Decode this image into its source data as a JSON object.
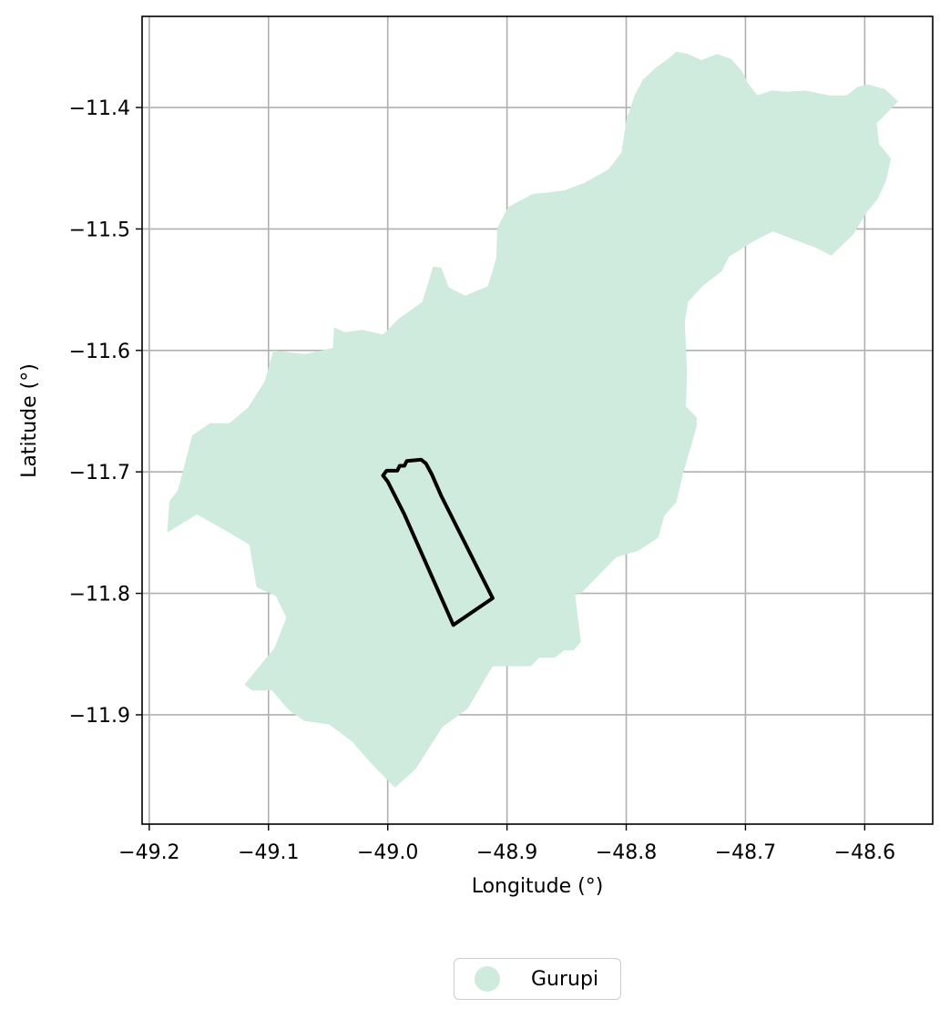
{
  "chart_data": {
    "type": "map",
    "xlabel": "Longitude (°)",
    "ylabel": "Latitude (°)",
    "xlim": [
      -49.206,
      -48.543
    ],
    "ylim": [
      -11.99,
      -11.325
    ],
    "xticks": [
      -49.2,
      -49.1,
      -49.0,
      -48.9,
      -48.8,
      -48.7,
      -48.6
    ],
    "xtick_labels": [
      "−49.2",
      "−49.1",
      "−49.0",
      "−48.9",
      "−48.8",
      "−48.7",
      "−48.6"
    ],
    "yticks": [
      -11.4,
      -11.5,
      -11.6,
      -11.7,
      -11.8,
      -11.9
    ],
    "ytick_labels": [
      "−11.4",
      "−11.5",
      "−11.6",
      "−11.7",
      "−11.8",
      "−11.9"
    ],
    "grid": true,
    "legend_position": "bottom-center",
    "layers": [
      {
        "name": "Gurupi",
        "kind": "region",
        "fill": "#cfebde",
        "boundary": [
          [
            -48.572,
            -11.395
          ],
          [
            -48.583,
            -11.385
          ],
          [
            -48.597,
            -11.381
          ],
          [
            -48.606,
            -11.383
          ],
          [
            -48.615,
            -11.39
          ],
          [
            -48.63,
            -11.39
          ],
          [
            -48.65,
            -11.386
          ],
          [
            -48.665,
            -11.387
          ],
          [
            -48.678,
            -11.386
          ],
          [
            -48.69,
            -11.39
          ],
          [
            -48.698,
            -11.38
          ],
          [
            -48.703,
            -11.37
          ],
          [
            -48.712,
            -11.36
          ],
          [
            -48.724,
            -11.356
          ],
          [
            -48.737,
            -11.361
          ],
          [
            -48.748,
            -11.356
          ],
          [
            -48.758,
            -11.354
          ],
          [
            -48.765,
            -11.36
          ],
          [
            -48.775,
            -11.367
          ],
          [
            -48.786,
            -11.377
          ],
          [
            -48.793,
            -11.39
          ],
          [
            -48.8,
            -11.411
          ],
          [
            -48.804,
            -11.437
          ],
          [
            -48.815,
            -11.451
          ],
          [
            -48.835,
            -11.462
          ],
          [
            -48.851,
            -11.468
          ],
          [
            -48.865,
            -11.47
          ],
          [
            -48.878,
            -11.471
          ],
          [
            -48.899,
            -11.482
          ],
          [
            -48.908,
            -11.499
          ],
          [
            -48.909,
            -11.524
          ],
          [
            -48.916,
            -11.547
          ],
          [
            -48.935,
            -11.555
          ],
          [
            -48.949,
            -11.548
          ],
          [
            -48.955,
            -11.532
          ],
          [
            -48.962,
            -11.531
          ],
          [
            -48.971,
            -11.56
          ],
          [
            -48.991,
            -11.574
          ],
          [
            -49.004,
            -11.587
          ],
          [
            -49.021,
            -11.583
          ],
          [
            -49.036,
            -11.585
          ],
          [
            -49.045,
            -11.581
          ],
          [
            -49.046,
            -11.598
          ],
          [
            -49.07,
            -11.603
          ],
          [
            -49.096,
            -11.6
          ],
          [
            -49.103,
            -11.625
          ],
          [
            -49.117,
            -11.647
          ],
          [
            -49.133,
            -11.66
          ],
          [
            -49.149,
            -11.66
          ],
          [
            -49.164,
            -11.67
          ],
          [
            -49.17,
            -11.693
          ],
          [
            -49.176,
            -11.715
          ],
          [
            -49.183,
            -11.724
          ],
          [
            -49.185,
            -11.75
          ],
          [
            -49.16,
            -11.735
          ],
          [
            -49.133,
            -11.75
          ],
          [
            -49.116,
            -11.76
          ],
          [
            -49.113,
            -11.778
          ],
          [
            -49.11,
            -11.795
          ],
          [
            -49.094,
            -11.802
          ],
          [
            -49.085,
            -11.82
          ],
          [
            -49.095,
            -11.845
          ],
          [
            -49.11,
            -11.863
          ],
          [
            -49.12,
            -11.875
          ],
          [
            -49.114,
            -11.88
          ],
          [
            -49.097,
            -11.88
          ],
          [
            -49.083,
            -11.896
          ],
          [
            -49.07,
            -11.905
          ],
          [
            -49.049,
            -11.908
          ],
          [
            -49.03,
            -11.922
          ],
          [
            -49.014,
            -11.94
          ],
          [
            -48.994,
            -11.96
          ],
          [
            -48.977,
            -11.945
          ],
          [
            -48.954,
            -11.91
          ],
          [
            -48.933,
            -11.895
          ],
          [
            -48.918,
            -11.87
          ],
          [
            -48.912,
            -11.86
          ],
          [
            -48.895,
            -11.86
          ],
          [
            -48.88,
            -11.86
          ],
          [
            -48.873,
            -11.853
          ],
          [
            -48.86,
            -11.853
          ],
          [
            -48.852,
            -11.847
          ],
          [
            -48.844,
            -11.847
          ],
          [
            -48.838,
            -11.84
          ],
          [
            -48.843,
            -11.8
          ],
          [
            -48.838,
            -11.8
          ],
          [
            -48.823,
            -11.785
          ],
          [
            -48.808,
            -11.77
          ],
          [
            -48.79,
            -11.765
          ],
          [
            -48.773,
            -11.754
          ],
          [
            -48.768,
            -11.736
          ],
          [
            -48.758,
            -11.725
          ],
          [
            -48.752,
            -11.7
          ],
          [
            -48.741,
            -11.663
          ],
          [
            -48.741,
            -11.655
          ],
          [
            -48.75,
            -11.646
          ],
          [
            -48.749,
            -11.62
          ],
          [
            -48.75,
            -11.595
          ],
          [
            -48.751,
            -11.577
          ],
          [
            -48.748,
            -11.56
          ],
          [
            -48.736,
            -11.547
          ],
          [
            -48.72,
            -11.535
          ],
          [
            -48.714,
            -11.523
          ],
          [
            -48.693,
            -11.51
          ],
          [
            -48.677,
            -11.502
          ],
          [
            -48.656,
            -11.51
          ],
          [
            -48.642,
            -11.515
          ],
          [
            -48.628,
            -11.522
          ],
          [
            -48.61,
            -11.505
          ],
          [
            -48.598,
            -11.486
          ],
          [
            -48.589,
            -11.475
          ],
          [
            -48.582,
            -11.46
          ],
          [
            -48.578,
            -11.442
          ],
          [
            -48.588,
            -11.43
          ],
          [
            -48.59,
            -11.413
          ]
        ]
      },
      {
        "name": "outlined parcel",
        "kind": "outline",
        "stroke": "#000000",
        "boundary": [
          [
            -49.004,
            -11.703
          ],
          [
            -49.001,
            -11.699
          ],
          [
            -48.992,
            -11.699
          ],
          [
            -48.99,
            -11.695
          ],
          [
            -48.986,
            -11.695
          ],
          [
            -48.984,
            -11.691
          ],
          [
            -48.972,
            -11.69
          ],
          [
            -48.968,
            -11.693
          ],
          [
            -48.963,
            -11.702
          ],
          [
            -48.955,
            -11.72
          ],
          [
            -48.912,
            -11.804
          ],
          [
            -48.945,
            -11.826
          ],
          [
            -48.986,
            -11.735
          ],
          [
            -49.0,
            -11.708
          ]
        ]
      }
    ],
    "legend": [
      {
        "label": "Gurupi",
        "color": "#cfebde"
      }
    ]
  }
}
